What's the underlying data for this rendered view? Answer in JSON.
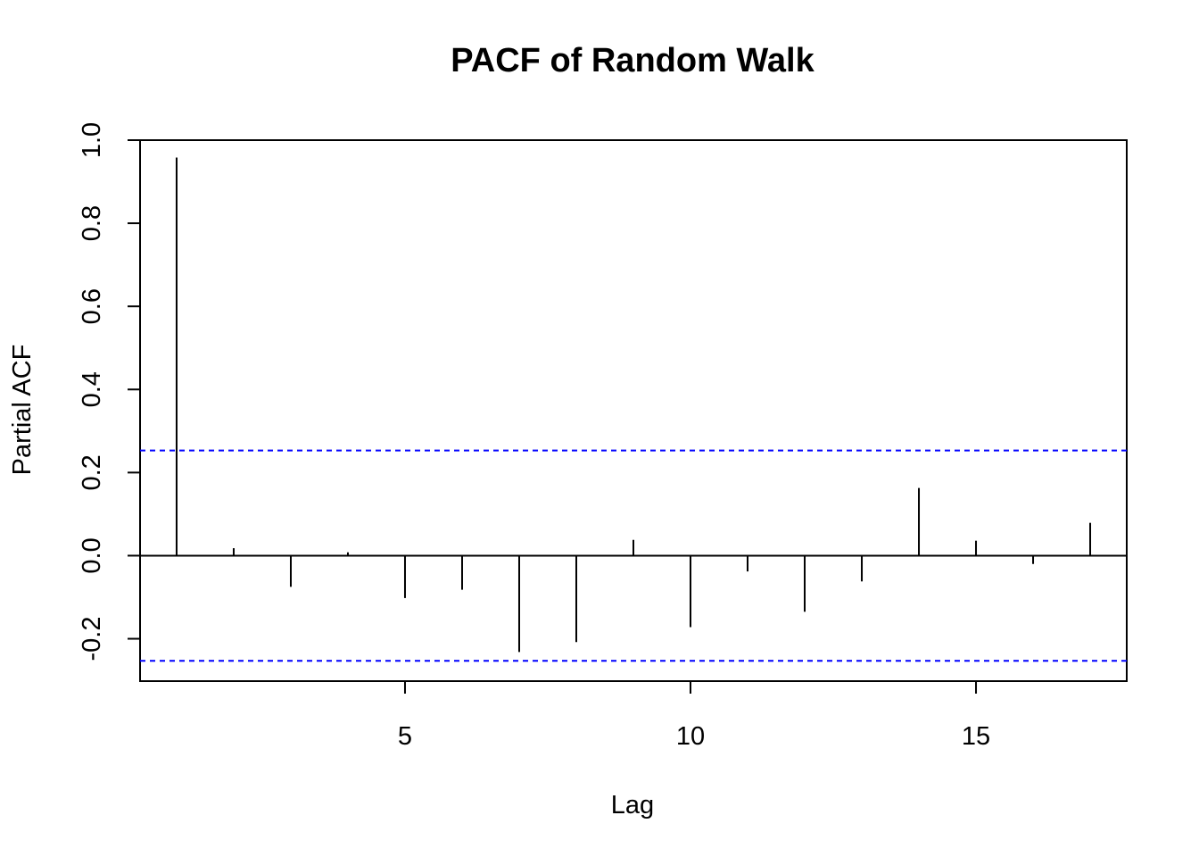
{
  "chart_data": {
    "type": "bar",
    "title": "PACF of Random Walk",
    "xlabel": "Lag",
    "ylabel": "Partial ACF",
    "xlim": [
      0.36,
      17.64
    ],
    "ylim": [
      -0.302,
      1.0
    ],
    "x_ticks": [
      5,
      10,
      15
    ],
    "x_tick_labels": [
      "5",
      "10",
      "15"
    ],
    "y_ticks": [
      -0.2,
      0.0,
      0.2,
      0.4,
      0.6,
      0.8,
      1.0
    ],
    "y_tick_labels": [
      "-0.2",
      "0.0",
      "0.2",
      "0.4",
      "0.6",
      "0.8",
      "1.0"
    ],
    "lags": [
      1,
      2,
      3,
      4,
      5,
      6,
      7,
      8,
      9,
      10,
      11,
      12,
      13,
      14,
      15,
      16,
      17
    ],
    "values": [
      0.958,
      0.018,
      -0.075,
      0.008,
      -0.102,
      -0.082,
      -0.232,
      -0.208,
      0.038,
      -0.172,
      -0.038,
      -0.135,
      -0.062,
      0.163,
      0.036,
      -0.02,
      0.079
    ],
    "confidence_limits": [
      0.253,
      -0.253
    ],
    "colors": {
      "spikes": "#000000",
      "confidence": "#0000ff",
      "zero_line": "#000000",
      "axes": "#000000"
    }
  }
}
